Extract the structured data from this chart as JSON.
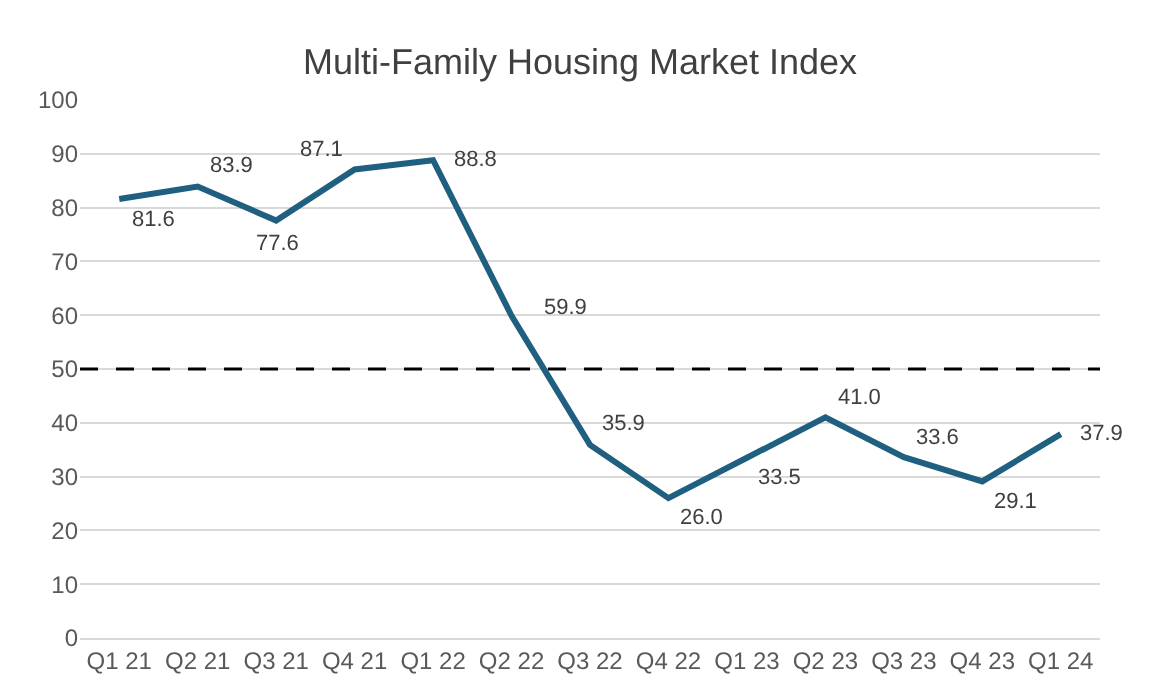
{
  "chart_data": {
    "type": "line",
    "title": "Multi-Family Housing Market Index",
    "categories": [
      "Q1 21",
      "Q2 21",
      "Q3 21",
      "Q4 21",
      "Q1 22",
      "Q2 22",
      "Q3 22",
      "Q4 22",
      "Q1 23",
      "Q2 23",
      "Q3 23",
      "Q4 23",
      "Q1 24"
    ],
    "series": [
      {
        "color": "#1f5f7f",
        "values": [
          81.6,
          83.9,
          77.6,
          87.1,
          88.8,
          59.9,
          35.9,
          26.0,
          33.5,
          41.0,
          33.6,
          29.1,
          37.9
        ],
        "value_labels": [
          "81.6",
          "83.9",
          "77.6",
          "87.1",
          "88.8",
          "59.9",
          "35.9",
          "26.0",
          "33.5",
          "41.0",
          "33.6",
          "29.1",
          "37.9"
        ]
      }
    ],
    "ylim": [
      0,
      100
    ],
    "yticks": [
      0,
      10,
      20,
      30,
      40,
      50,
      60,
      70,
      80,
      90,
      100
    ],
    "ref_lines": [
      {
        "axis": "y",
        "value": 50,
        "line_style": "dashed",
        "color": "#000000"
      }
    ],
    "grid": "y",
    "marker": "none",
    "line_style": "solid"
  }
}
